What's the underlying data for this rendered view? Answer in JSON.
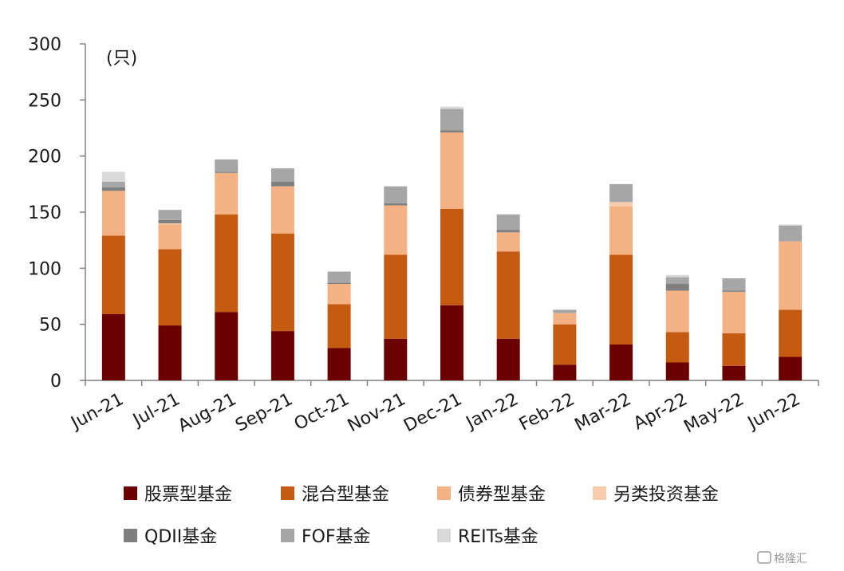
{
  "chart_data": {
    "type": "bar",
    "stacked": true,
    "unit": "(只)",
    "ylim": [
      0,
      300
    ],
    "yticks": [
      0,
      50,
      100,
      150,
      200,
      250,
      300
    ],
    "grid": false,
    "legend_position": "bottom",
    "categories": [
      "Jun-21",
      "Jul-21",
      "Aug-21",
      "Sep-21",
      "Oct-21",
      "Nov-21",
      "Dec-21",
      "Jan-22",
      "Feb-22",
      "Mar-22",
      "Apr-22",
      "May-22",
      "Jun-22"
    ],
    "series": [
      {
        "name": "股票型基金",
        "color": "#6b0000",
        "values": [
          59,
          49,
          61,
          44,
          29,
          37,
          67,
          37,
          14,
          32,
          16,
          13,
          21
        ]
      },
      {
        "name": "混合型基金",
        "color": "#c55a11",
        "values": [
          70,
          68,
          87,
          87,
          39,
          75,
          86,
          78,
          36,
          80,
          27,
          29,
          42
        ]
      },
      {
        "name": "债券型基金",
        "color": "#f4b183",
        "values": [
          40,
          22,
          37,
          42,
          18,
          44,
          68,
          17,
          10,
          43,
          37,
          37,
          61
        ]
      },
      {
        "name": "另类投资基金",
        "color": "#f8cbad",
        "values": [
          0,
          1,
          0,
          0,
          0,
          0,
          0,
          0,
          0,
          4,
          0,
          0,
          0
        ]
      },
      {
        "name": "QDII基金",
        "color": "#7f7f7f",
        "values": [
          3,
          3,
          1,
          4,
          1,
          2,
          2,
          2,
          0,
          0,
          6,
          1,
          0
        ]
      },
      {
        "name": "FOF基金",
        "color": "#a6a6a6",
        "values": [
          5,
          9,
          11,
          12,
          10,
          15,
          19,
          14,
          3,
          16,
          6,
          11,
          14
        ]
      },
      {
        "name": "REITs基金",
        "color": "#d9d9d9",
        "values": [
          9,
          0,
          0,
          0,
          0,
          0,
          2,
          0,
          0,
          0,
          2,
          0,
          1
        ]
      }
    ]
  },
  "watermark": "格隆汇"
}
